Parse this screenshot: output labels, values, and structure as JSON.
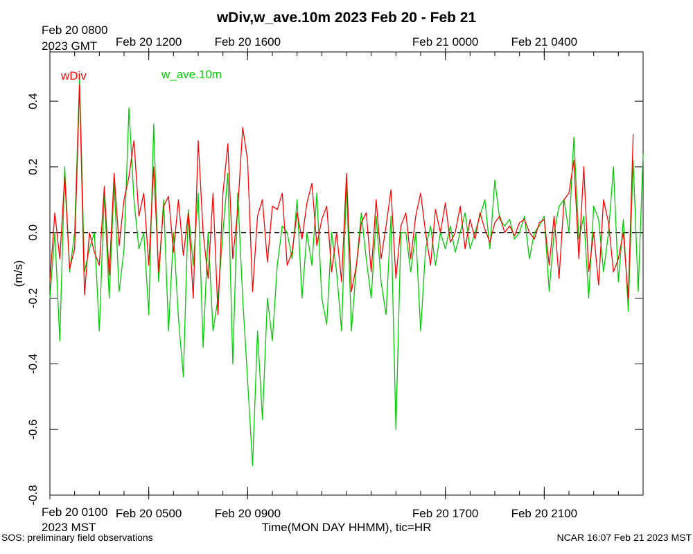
{
  "chart_data": {
    "type": "line",
    "title": "wDiv,w_ave.10m 2023 Feb 20 - Feb 21",
    "xlabel": "Time(MON DAY HHMM), tic=HR",
    "ylabel": "(m/s)",
    "ylim": [
      -0.8,
      0.55
    ],
    "xlim_hours_mst": [
      0,
      24
    ],
    "grid": false,
    "legend_placement": "top-left",
    "zero_reference_line": "dashed",
    "y_ticks": [
      -0.8,
      -0.6,
      -0.4,
      -0.2,
      0.0,
      0.2,
      0.4
    ],
    "y_tick_labels": [
      "-0.8",
      "-0.6",
      "-0.4",
      "-0.2",
      "0.0",
      "0.2",
      "0.4"
    ],
    "bottom_axis": {
      "major_ticks_hours_mst": [
        0,
        4,
        8,
        16,
        20
      ],
      "major_labels": [
        "Feb 20 0100",
        "Feb 20 0500",
        "Feb 20 0900",
        "Feb 20 1700",
        "Feb 20 2100"
      ],
      "timezone_label": "2023 MST"
    },
    "top_axis": {
      "major_ticks_hours_mst": [
        0,
        4,
        8,
        16,
        20
      ],
      "major_labels": [
        "Feb 20 0800",
        "Feb 20 1200",
        "Feb 20 1600",
        "Feb 21 0000",
        "Feb 21 0400"
      ],
      "timezone_label": "2023 GMT"
    },
    "series": [
      {
        "name": "wDiv",
        "color": "#ff0000",
        "x_hours_mst": [
          0.0,
          0.2,
          0.4,
          0.6,
          0.8,
          1.0,
          1.2,
          1.4,
          1.6,
          1.8,
          2.0,
          2.2,
          2.4,
          2.6,
          2.8,
          3.0,
          3.2,
          3.4,
          3.6,
          3.8,
          4.0,
          4.2,
          4.4,
          4.6,
          4.8,
          5.0,
          5.2,
          5.4,
          5.6,
          5.8,
          6.0,
          6.2,
          6.4,
          6.6,
          6.8,
          7.0,
          7.2,
          7.4,
          7.6,
          7.8,
          8.0,
          8.2,
          8.4,
          8.6,
          8.8,
          9.0,
          9.2,
          9.4,
          9.6,
          9.8,
          10.0,
          10.2,
          10.4,
          10.6,
          10.8,
          11.0,
          11.2,
          11.4,
          11.6,
          11.8,
          12.0,
          12.2,
          12.4,
          12.6,
          12.8,
          13.0,
          13.2,
          13.4,
          13.6,
          13.8,
          14.0,
          14.2,
          14.4,
          14.6,
          14.8,
          15.0,
          15.2,
          15.4,
          15.6,
          15.8,
          16.0,
          16.2,
          16.4,
          16.6,
          16.8,
          17.0,
          17.2,
          17.4,
          17.6,
          17.8,
          18.0,
          18.2,
          18.4,
          18.6,
          18.8,
          19.0,
          19.2,
          19.4,
          19.6,
          19.8,
          20.0,
          20.2,
          20.4,
          20.6,
          20.8,
          21.0,
          21.2,
          21.4,
          21.6,
          21.8,
          22.0,
          22.2,
          22.4,
          22.6,
          22.8,
          23.0,
          23.2,
          23.4,
          23.6,
          23.8,
          24.0
        ],
        "values": [
          -0.15,
          0.06,
          -0.08,
          0.17,
          -0.11,
          -0.05,
          0.45,
          -0.19,
          0.0,
          -0.06,
          -0.1,
          0.14,
          -0.13,
          0.18,
          -0.04,
          0.1,
          0.17,
          0.28,
          0.05,
          0.12,
          -0.1,
          0.2,
          -0.12,
          0.08,
          0.11,
          -0.06,
          0.1,
          -0.07,
          0.06,
          -0.2,
          0.28,
          0.0,
          -0.14,
          0.12,
          -0.25,
          0.12,
          0.27,
          -0.08,
          0.07,
          0.32,
          0.22,
          -0.18,
          0.05,
          0.1,
          -0.09,
          0.08,
          0.07,
          0.12,
          -0.1,
          -0.06,
          0.06,
          -0.02,
          0.09,
          0.15,
          -0.04,
          0.04,
          0.08,
          -0.12,
          0.0,
          -0.15,
          0.18,
          -0.18,
          -0.1,
          0.03,
          0.06,
          -0.12,
          0.1,
          -0.08,
          0.02,
          0.13,
          -0.14,
          0.02,
          0.06,
          -0.08,
          0.05,
          0.12,
          0.0,
          -0.1,
          0.07,
          0.0,
          0.09,
          -0.03,
          0.0,
          0.08,
          -0.05,
          0.04,
          -0.02,
          0.06,
          0.01,
          -0.03,
          0.03,
          0.05,
          0.0,
          0.02,
          -0.01,
          0.03,
          0.04,
          0.0,
          -0.02,
          0.03,
          0.04,
          -0.1,
          0.05,
          -0.14,
          0.1,
          0.12,
          0.22,
          -0.08,
          0.2,
          -0.12,
          0.0,
          -0.16,
          0.1,
          0.03,
          -0.12,
          -0.08,
          0.0,
          -0.2,
          0.3
        ]
      },
      {
        "name": "w_ave.10m",
        "color": "#00cc00",
        "x_hours_mst": [
          0.0,
          0.2,
          0.4,
          0.6,
          0.8,
          1.0,
          1.2,
          1.4,
          1.6,
          1.8,
          2.0,
          2.2,
          2.4,
          2.6,
          2.8,
          3.0,
          3.2,
          3.4,
          3.6,
          3.8,
          4.0,
          4.2,
          4.4,
          4.6,
          4.8,
          5.0,
          5.2,
          5.4,
          5.6,
          5.8,
          6.0,
          6.2,
          6.4,
          6.6,
          6.8,
          7.0,
          7.2,
          7.4,
          7.6,
          7.8,
          8.0,
          8.2,
          8.4,
          8.6,
          8.8,
          9.0,
          9.2,
          9.4,
          9.6,
          9.8,
          10.0,
          10.2,
          10.4,
          10.6,
          10.8,
          11.0,
          11.2,
          11.4,
          11.6,
          11.8,
          12.0,
          12.2,
          12.4,
          12.6,
          12.8,
          13.0,
          13.2,
          13.4,
          13.6,
          13.8,
          14.0,
          14.2,
          14.4,
          14.6,
          14.8,
          15.0,
          15.2,
          15.4,
          15.6,
          15.8,
          16.0,
          16.2,
          16.4,
          16.6,
          16.8,
          17.0,
          17.2,
          17.4,
          17.6,
          17.8,
          18.0,
          18.2,
          18.4,
          18.6,
          18.8,
          19.0,
          19.2,
          19.4,
          19.6,
          19.8,
          20.0,
          20.2,
          20.4,
          20.6,
          20.8,
          21.0,
          21.2,
          21.4,
          21.6,
          21.8,
          22.0,
          22.2,
          22.4,
          22.6,
          22.8,
          23.0,
          23.2,
          23.4,
          23.6,
          23.8,
          24.0
        ],
        "values": [
          -0.2,
          0.0,
          -0.33,
          0.2,
          -0.12,
          0.0,
          0.47,
          -0.12,
          -0.05,
          0.0,
          -0.3,
          0.12,
          -0.2,
          0.15,
          -0.18,
          -0.05,
          0.38,
          0.1,
          -0.05,
          0.0,
          -0.25,
          0.33,
          -0.15,
          0.1,
          -0.3,
          0.0,
          -0.26,
          -0.44,
          0.07,
          -0.1,
          0.12,
          -0.35,
          0.0,
          -0.3,
          -0.2,
          0.0,
          0.18,
          -0.4,
          0.12,
          -0.2,
          -0.45,
          -0.71,
          -0.3,
          -0.57,
          -0.2,
          -0.33,
          -0.1,
          0.02,
          0.0,
          -0.08,
          0.1,
          -0.2,
          0.0,
          -0.1,
          0.12,
          -0.2,
          -0.28,
          0.0,
          -0.12,
          -0.3,
          0.15,
          -0.3,
          -0.1,
          0.06,
          -0.08,
          -0.2,
          0.05,
          -0.15,
          -0.25,
          0.05,
          -0.6,
          0.0,
          0.0,
          -0.12,
          0.0,
          -0.3,
          -0.05,
          0.02,
          -0.1,
          0.0,
          -0.05,
          0.02,
          -0.06,
          0.0,
          0.06,
          -0.05,
          0.0,
          0.05,
          0.1,
          -0.05,
          0.16,
          0.04,
          0.02,
          0.04,
          -0.02,
          0.0,
          0.05,
          -0.08,
          0.0,
          0.02,
          0.05,
          -0.18,
          0.0,
          0.08,
          0.1,
          0.0,
          0.29,
          -0.02,
          0.05,
          -0.2,
          0.08,
          0.04,
          -0.12,
          0.0,
          0.2,
          -0.15,
          0.04,
          -0.24,
          0.22,
          -0.18,
          0.24
        ]
      }
    ]
  },
  "footer_left": "SOS: preliminary field observations",
  "footer_right": "NCAR 16:07 Feb 21 2023 MST"
}
